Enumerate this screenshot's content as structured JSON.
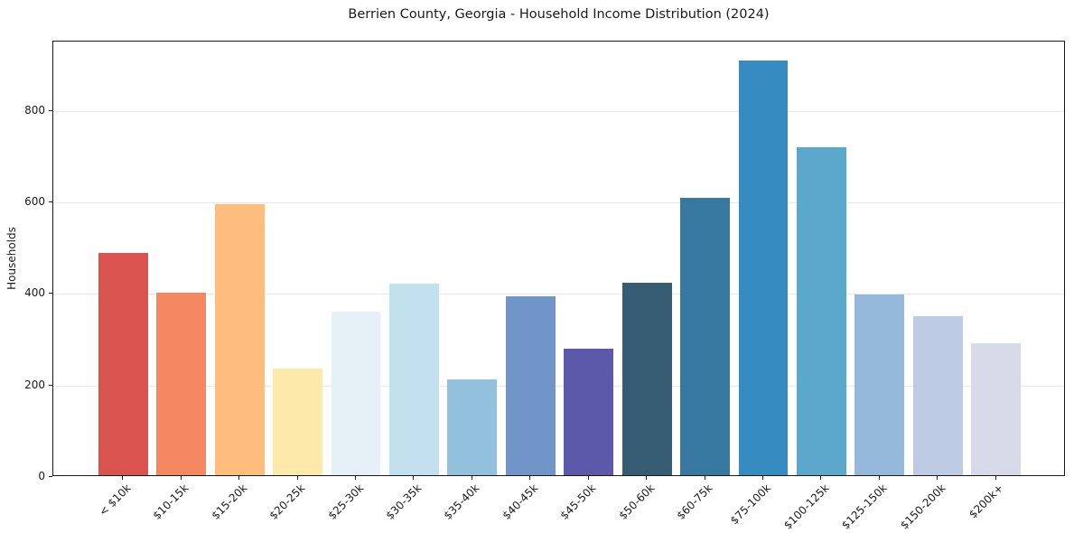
{
  "chart_data": {
    "type": "bar",
    "title": "Berrien County, Georgia - Household Income Distribution (2024)",
    "xlabel": "",
    "ylabel": "Households",
    "categories": [
      "< $10k",
      "$10-15k",
      "$15-20k",
      "$20-25k",
      "$25-30k",
      "$30-35k",
      "$35-40k",
      "$40-45k",
      "$45-50k",
      "$50-60k",
      "$60-75k",
      "$75-100k",
      "$100-125k",
      "$125-150k",
      "$150-200k",
      "$200k+"
    ],
    "values": [
      485,
      399,
      592,
      234,
      357,
      418,
      210,
      391,
      277,
      420,
      606,
      906,
      717,
      395,
      348,
      289
    ],
    "bar_colors": [
      "#d9544e",
      "#f48862",
      "#fcbd7d",
      "#fde9a9",
      "#e6f1f7",
      "#c3e0ee",
      "#93c0dd",
      "#7195c8",
      "#5c59ab",
      "#375d74",
      "#36789f",
      "#368bc1",
      "#5ca8cd",
      "#94b9da",
      "#bdcce4",
      "#d8daea"
    ],
    "ylim": [
      0,
      952
    ],
    "yticks": [
      0,
      200,
      400,
      600,
      800
    ],
    "grid": "horizontal-only",
    "grid_color": "#e8e8e8",
    "legend": "none",
    "plot_background": "#ffffff"
  }
}
